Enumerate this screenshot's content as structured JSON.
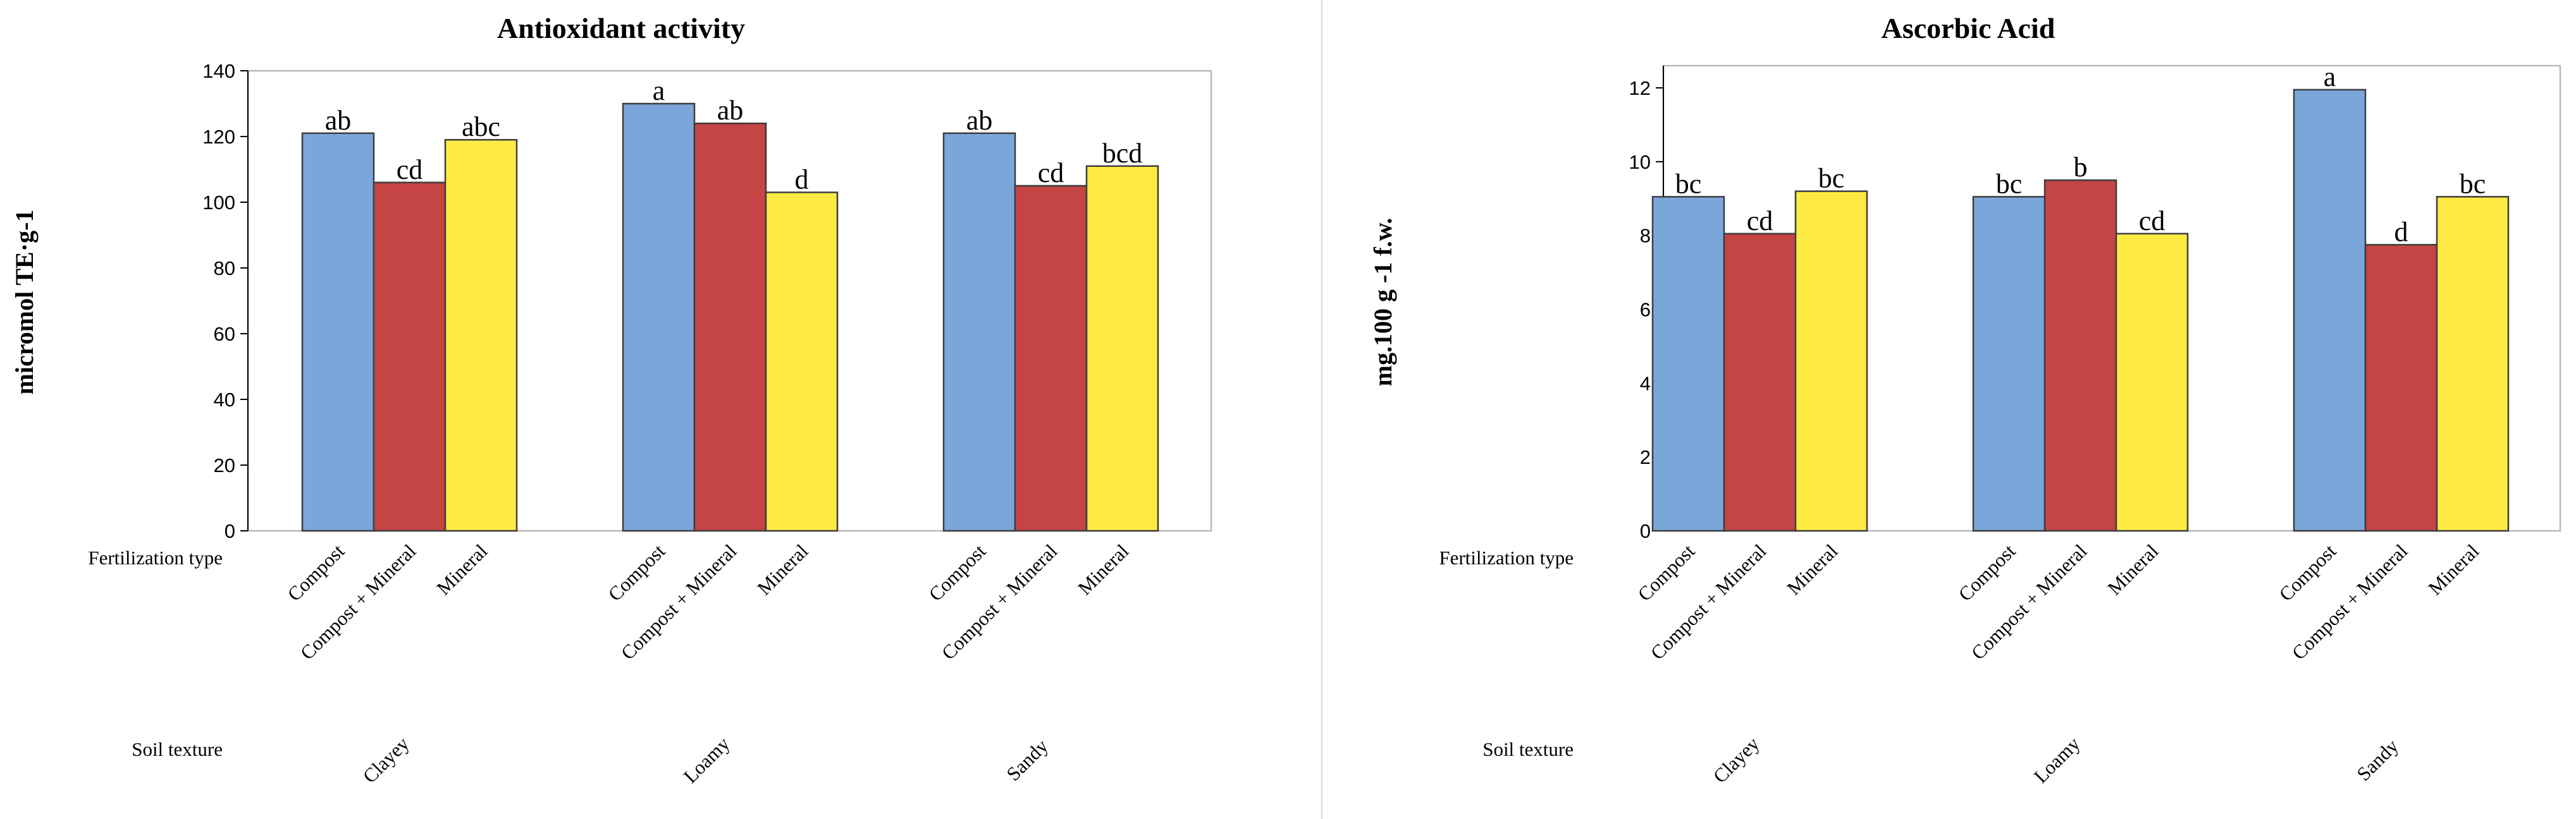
{
  "chart_data": [
    {
      "type": "bar",
      "title": "Antioxidant activity",
      "ylabel": "micromol TE·g-1",
      "ylim": [
        0,
        140
      ],
      "yticks": [
        0,
        20,
        40,
        60,
        80,
        100,
        120,
        140
      ],
      "row_labels": {
        "fertilization": "Fertilization type",
        "soil": "Soil texture"
      },
      "groups": [
        "Clayey",
        "Loamy",
        "Sandy"
      ],
      "categories": [
        "Compost",
        "Compost + Mineral",
        "Mineral"
      ],
      "colors": [
        "#7ba6da",
        "#c54444",
        "#fdea43"
      ],
      "values": [
        [
          121,
          106,
          119
        ],
        [
          130,
          124,
          103
        ],
        [
          121,
          105,
          111
        ]
      ],
      "letters": [
        [
          "ab",
          "cd",
          "abc"
        ],
        [
          "a",
          "ab",
          "d"
        ],
        [
          "ab",
          "cd",
          "bcd"
        ]
      ]
    },
    {
      "type": "bar",
      "title": "Ascorbic Acid",
      "ylabel": "mg.100 g -1 f.w.",
      "ylim": [
        0,
        12.6
      ],
      "yticks": [
        0,
        2,
        4,
        6,
        8,
        10,
        12
      ],
      "row_labels": {
        "fertilization": "Fertilization type",
        "soil": "Soil texture"
      },
      "groups": [
        "Clayey",
        "Loamy",
        "Sandy"
      ],
      "categories": [
        "Compost",
        "Compost + Mineral",
        "Mineral"
      ],
      "colors": [
        "#7ba6da",
        "#c54444",
        "#fdea43"
      ],
      "values": [
        [
          9.05,
          8.05,
          9.2
        ],
        [
          9.05,
          9.5,
          8.05
        ],
        [
          11.95,
          7.75,
          9.05
        ]
      ],
      "letters": [
        [
          "bc",
          "cd",
          "bc"
        ],
        [
          "bc",
          "b",
          "cd"
        ],
        [
          "a",
          "d",
          "bc"
        ]
      ]
    }
  ]
}
